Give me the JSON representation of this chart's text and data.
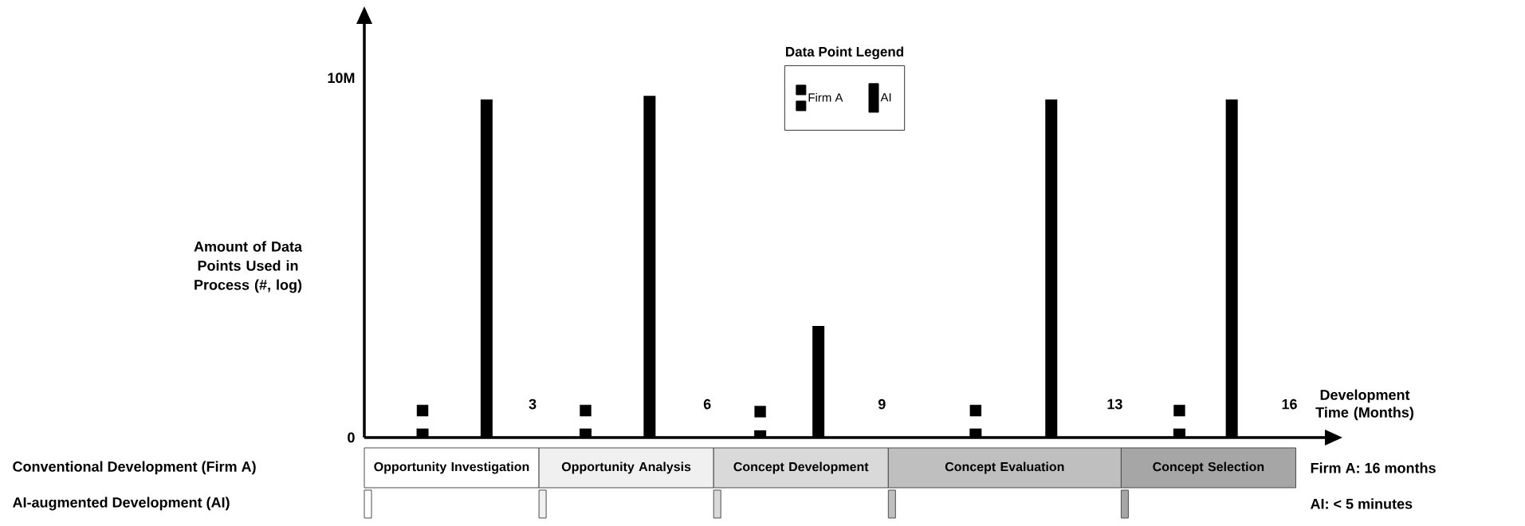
{
  "chart_data": {
    "type": "bar",
    "xlabel": "Development Time (Months)",
    "ylabel": "Amount of Data Points Used in Process (#, log)",
    "legend_title": "Data Point Legend",
    "legend": "top",
    "marker": "square",
    "xlim": [
      0,
      16.5
    ],
    "xticks": [
      3,
      6,
      9,
      13,
      16
    ],
    "ylim": [
      0,
      11500000
    ],
    "yticks": [
      0,
      {
        "value": 10000000,
        "label": "10M"
      }
    ],
    "series": [
      {
        "name": "Firm A",
        "color": "#000000",
        "x": [
          1.0,
          3.8,
          6.8,
          10.5,
          14.0
        ],
        "values": [
          250000,
          250000,
          200000,
          250000,
          250000
        ]
      },
      {
        "type": "scatter",
        "color": "#000000",
        "x": [
          1.0,
          3.8,
          6.8,
          10.5,
          14.0
        ],
        "values": [
          750000,
          750000,
          720000,
          750000,
          750000
        ]
      },
      {
        "name": "AI",
        "color": "#000000",
        "x": [
          2.1,
          4.9,
          7.8,
          11.8,
          14.9
        ],
        "values": [
          9400000,
          9500000,
          3100000,
          9400000,
          9400000
        ]
      }
    ],
    "annotations": [
      "Conventional Development (Firm A)",
      "AI-augmented Development (AI)",
      "Firm A: 16 months",
      "AI: < 5 minutes",
      "Opportunity Investigation",
      "Opportunity Analysis",
      "Concept Development",
      "Concept Evaluation",
      "Concept Selection"
    ]
  }
}
